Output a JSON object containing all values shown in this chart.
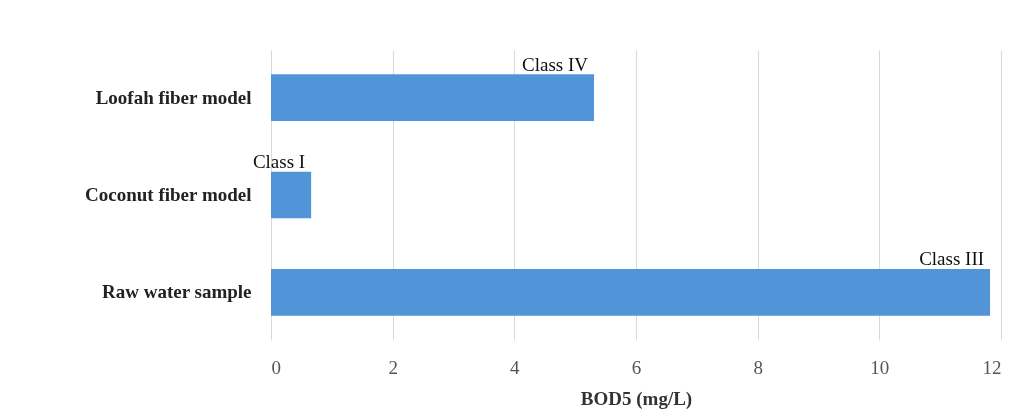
{
  "chart_data": {
    "type": "bar",
    "orientation": "horizontal",
    "xlabel": "BOD5 (mg/L)",
    "categories": [
      "Loofah fiber model",
      "Coconut fiber model",
      "Raw water sample"
    ],
    "values": [
      5.31,
      0.66,
      11.82
    ],
    "color": "#5294d8",
    "xlim": [
      0,
      12
    ],
    "xticks": [
      0,
      2,
      4,
      6,
      8,
      10,
      12
    ],
    "grid": "x",
    "annotations": [
      "Class IV",
      "Class I",
      "Class III"
    ]
  }
}
